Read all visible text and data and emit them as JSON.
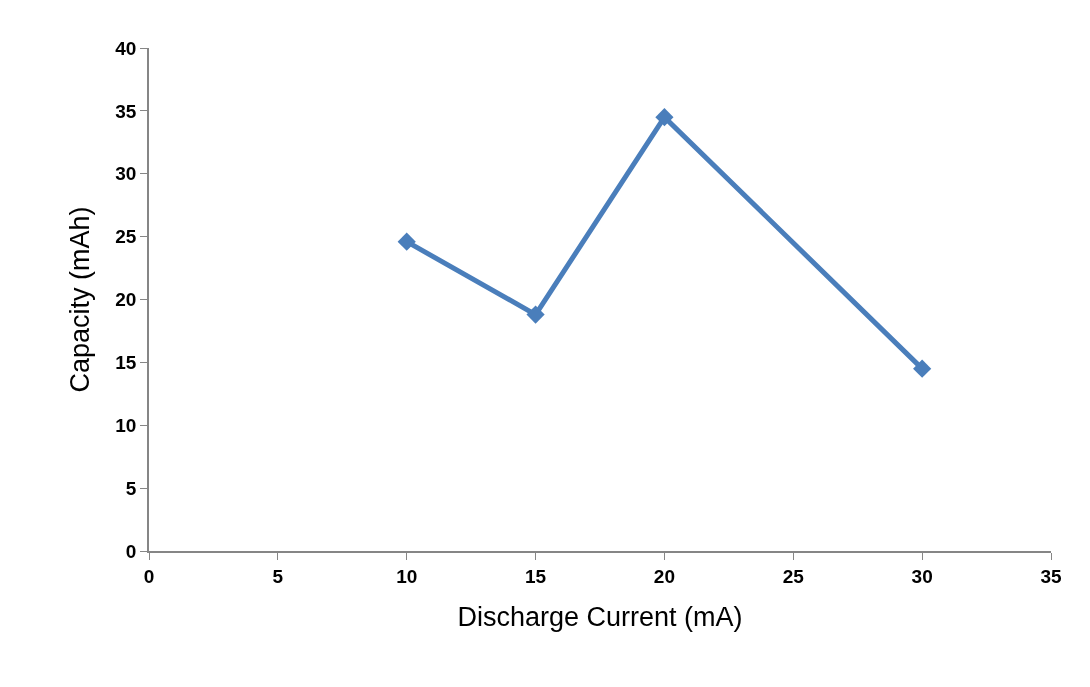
{
  "chart_data": {
    "type": "line",
    "xlabel": "Discharge Current (mA)",
    "ylabel": "Capacity (mAh)",
    "x": [
      10,
      15,
      20,
      30
    ],
    "series": [
      {
        "color": "#4a7ebb",
        "values": [
          24.6,
          18.8,
          34.5,
          14.5
        ]
      }
    ],
    "xlim": [
      0,
      35
    ],
    "xticks": [
      0,
      5,
      10,
      15,
      20,
      25,
      30,
      35
    ],
    "ylim": [
      0,
      40
    ],
    "yticks": [
      0,
      5,
      10,
      15,
      20,
      25,
      30,
      35,
      40
    ],
    "grid": false,
    "marker": "diamond",
    "line_style": "solid"
  }
}
